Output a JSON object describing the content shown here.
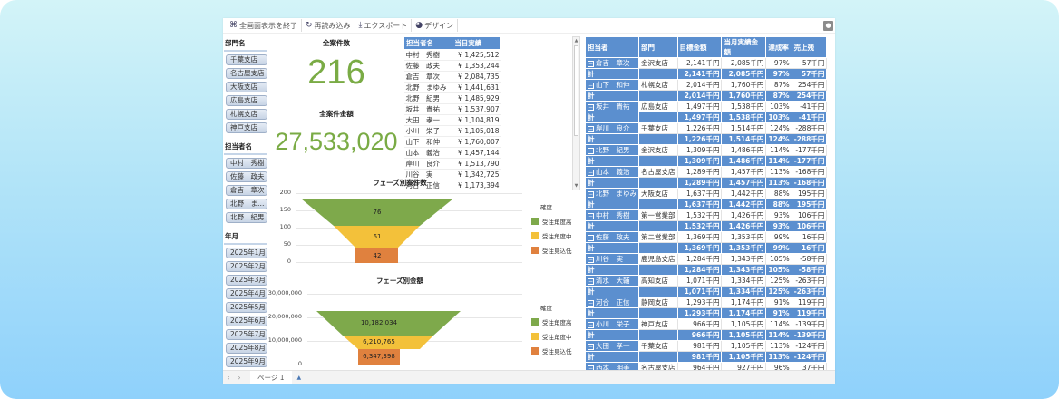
{
  "toolbar": {
    "exit_fullscreen": "全画面表示を終了",
    "reload": "再読み込み",
    "export": "エクスポート",
    "design": "デザイン"
  },
  "filters": {
    "department": {
      "title": "部門名",
      "items": [
        "千葉支店",
        "名古屋支店",
        "大阪支店",
        "広島支店",
        "札幌支店",
        "神戸支店"
      ]
    },
    "person": {
      "title": "担当者名",
      "items": [
        "中村　秀樹",
        "佐藤　政夫",
        "倉吉　章次",
        "北野　ま…",
        "北野　紀男"
      ]
    },
    "month": {
      "title": "年月",
      "items": [
        "2025年1月",
        "2025年2月",
        "2025年3月",
        "2025年4月",
        "2025年5月",
        "2025年6月",
        "2025年7月",
        "2025年8月",
        "2025年9月"
      ]
    }
  },
  "kpi": {
    "count_title": "全案件数",
    "count_value": "216",
    "amount_title": "全案件金額",
    "amount_value": "27,533,020"
  },
  "daily_table": {
    "headers": [
      "担当者名",
      "当日実績"
    ],
    "rows": [
      [
        "中村　秀樹",
        "¥ 1,425,512"
      ],
      [
        "佐藤　政夫",
        "¥ 1,353,244"
      ],
      [
        "倉吉　章次",
        "¥ 2,084,735"
      ],
      [
        "北野　まゆみ",
        "¥ 1,441,631"
      ],
      [
        "北野　紀男",
        "¥ 1,485,929"
      ],
      [
        "坂井　貴祐",
        "¥ 1,537,907"
      ],
      [
        "大田　孝一",
        "¥ 1,104,819"
      ],
      [
        "小川　栄子",
        "¥ 1,105,018"
      ],
      [
        "山下　和伸",
        "¥ 1,760,007"
      ],
      [
        "山本　義治",
        "¥ 1,457,144"
      ],
      [
        "岸川　良介",
        "¥ 1,513,790"
      ],
      [
        "川谷　実",
        "¥ 1,342,725"
      ],
      [
        "河合　正信",
        "¥ 1,173,394"
      ]
    ]
  },
  "chart_data": [
    {
      "type": "funnel",
      "title": "フェーズ別案件数",
      "legend_title": "確度",
      "categories": [
        "受注角度高",
        "受注角度中",
        "受注見込低"
      ],
      "values": [
        76,
        61,
        42
      ],
      "colors": [
        "#7ea94b",
        "#f3c13a",
        "#e0813e"
      ],
      "yticks": [
        "200",
        "150",
        "100",
        "50",
        "0"
      ],
      "ylim": [
        0,
        200
      ]
    },
    {
      "type": "funnel",
      "title": "フェーズ別金額",
      "legend_title": "確度",
      "categories": [
        "受注角度高",
        "受注角度中",
        "受注見込低"
      ],
      "values": [
        10182034,
        6210765,
        6347398
      ],
      "labels": [
        "10,182,034",
        "6,210,765",
        "6,347,398"
      ],
      "colors": [
        "#7ea94b",
        "#f3c13a",
        "#e0813e"
      ],
      "yticks": [
        "30,000,000",
        "20,000,000",
        "10,000,000",
        "0"
      ],
      "ylim": [
        0,
        30000000
      ]
    }
  ],
  "pivot": {
    "headers": [
      "担当者",
      "部門",
      "目標金額",
      "当月実績金額",
      "達成率",
      "売上残"
    ],
    "subtotal_label": "計",
    "total_label": "総計",
    "rows": [
      {
        "name": "倉吉　章次",
        "dept": "金沢支店",
        "target": "2,141千円",
        "actual": "2,085千円",
        "rate": "97%",
        "remain": "57千円"
      },
      {
        "name": "山下　和伸",
        "dept": "札幌支店",
        "target": "2,014千円",
        "actual": "1,760千円",
        "rate": "87%",
        "remain": "254千円"
      },
      {
        "name": "坂井　貴祐",
        "dept": "広島支店",
        "target": "1,497千円",
        "actual": "1,538千円",
        "rate": "103%",
        "remain": "-41千円"
      },
      {
        "name": "岸川　良介",
        "dept": "千葉支店",
        "target": "1,226千円",
        "actual": "1,514千円",
        "rate": "124%",
        "remain": "-288千円"
      },
      {
        "name": "北野　紀男",
        "dept": "金沢支店",
        "target": "1,309千円",
        "actual": "1,486千円",
        "rate": "114%",
        "remain": "-177千円"
      },
      {
        "name": "山本　義治",
        "dept": "名古屋支店",
        "target": "1,289千円",
        "actual": "1,457千円",
        "rate": "113%",
        "remain": "-168千円"
      },
      {
        "name": "北野　まゆみ",
        "dept": "大阪支店",
        "target": "1,637千円",
        "actual": "1,442千円",
        "rate": "88%",
        "remain": "195千円"
      },
      {
        "name": "中村　秀樹",
        "dept": "第一営業部",
        "target": "1,532千円",
        "actual": "1,426千円",
        "rate": "93%",
        "remain": "106千円"
      },
      {
        "name": "佐藤　政夫",
        "dept": "第二営業部",
        "target": "1,369千円",
        "actual": "1,353千円",
        "rate": "99%",
        "remain": "16千円"
      },
      {
        "name": "川谷　実",
        "dept": "鹿児島支店",
        "target": "1,284千円",
        "actual": "1,343千円",
        "rate": "105%",
        "remain": "-58千円"
      },
      {
        "name": "清水　大輔",
        "dept": "高知支店",
        "target": "1,071千円",
        "actual": "1,334千円",
        "rate": "125%",
        "remain": "-263千円"
      },
      {
        "name": "河合　正信",
        "dept": "静岡支店",
        "target": "1,293千円",
        "actual": "1,174千円",
        "rate": "91%",
        "remain": "119千円"
      },
      {
        "name": "小川　栄子",
        "dept": "神戸支店",
        "target": "966千円",
        "actual": "1,105千円",
        "rate": "114%",
        "remain": "-139千円"
      },
      {
        "name": "大田　孝一",
        "dept": "千葉支店",
        "target": "981千円",
        "actual": "1,105千円",
        "rate": "113%",
        "remain": "-124千円"
      },
      {
        "name": "西本　明美",
        "dept": "名古屋支店",
        "target": "964千円",
        "actual": "927千円",
        "rate": "96%",
        "remain": "37千円"
      }
    ],
    "total": {
      "target": "20,572千円",
      "actual": "21,048千円",
      "rate": "102%",
      "remain": "-476千円"
    }
  },
  "footer": {
    "page_tab": "ページ 1"
  }
}
